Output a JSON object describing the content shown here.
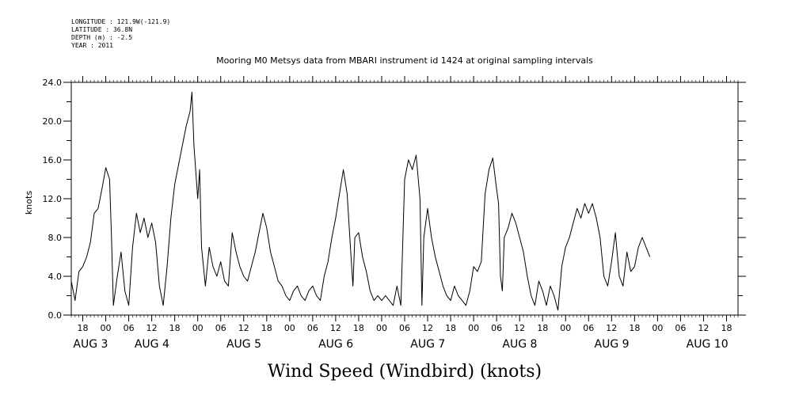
{
  "header": {
    "longitude": "LONGITUDE : 121.9W(-121.9)",
    "latitude": "LATITUDE : 36.8N",
    "depth": "DEPTH (m) : -2.5",
    "year": "YEAR : 2011"
  },
  "chart_data": {
    "type": "line",
    "title": "Mooring M0 Metsys data from MBARI instrument id 1424 at original sampling intervals",
    "ylabel": "knots",
    "xlabel": "Wind Speed (Windbird) (knots)",
    "ylim": [
      0,
      24
    ],
    "yticks": [
      "0.0",
      "4.0",
      "8.0",
      "12.0",
      "16.0",
      "20.0",
      "24.0"
    ],
    "xlim": [
      0,
      174
    ],
    "x_note": "hours since 2011-08-02 15:00",
    "hour_ticks": [
      {
        "x": 3,
        "label": "18"
      },
      {
        "x": 9,
        "label": "00"
      },
      {
        "x": 15,
        "label": "06"
      },
      {
        "x": 21,
        "label": "12"
      },
      {
        "x": 27,
        "label": "18"
      },
      {
        "x": 33,
        "label": "00"
      },
      {
        "x": 39,
        "label": "06"
      },
      {
        "x": 45,
        "label": "12"
      },
      {
        "x": 51,
        "label": "18"
      },
      {
        "x": 57,
        "label": "00"
      },
      {
        "x": 63,
        "label": "06"
      },
      {
        "x": 69,
        "label": "12"
      },
      {
        "x": 75,
        "label": "18"
      },
      {
        "x": 81,
        "label": "00"
      },
      {
        "x": 87,
        "label": "06"
      },
      {
        "x": 93,
        "label": "12"
      },
      {
        "x": 99,
        "label": "18"
      },
      {
        "x": 105,
        "label": "00"
      },
      {
        "x": 111,
        "label": "06"
      },
      {
        "x": 117,
        "label": "12"
      },
      {
        "x": 123,
        "label": "18"
      },
      {
        "x": 129,
        "label": "00"
      },
      {
        "x": 135,
        "label": "06"
      },
      {
        "x": 141,
        "label": "12"
      },
      {
        "x": 147,
        "label": "18"
      },
      {
        "x": 153,
        "label": "00"
      },
      {
        "x": 159,
        "label": "06"
      },
      {
        "x": 165,
        "label": "12"
      },
      {
        "x": 171,
        "label": "18"
      }
    ],
    "day_labels": [
      {
        "x": 0.5,
        "label": "AUG  3"
      },
      {
        "x": 16.5,
        "label": "AUG  4"
      },
      {
        "x": 40.5,
        "label": "AUG  5"
      },
      {
        "x": 64.5,
        "label": "AUG  6"
      },
      {
        "x": 88.5,
        "label": "AUG  7"
      },
      {
        "x": 112.5,
        "label": "AUG  8"
      },
      {
        "x": 136.5,
        "label": "AUG  9"
      },
      {
        "x": 160.5,
        "label": "AUG 10"
      }
    ],
    "series": [
      {
        "values": [
          [
            0,
            3.5
          ],
          [
            1,
            1.5
          ],
          [
            2,
            4.5
          ],
          [
            3,
            5.0
          ],
          [
            4,
            6.0
          ],
          [
            5,
            7.5
          ],
          [
            6,
            10.5
          ],
          [
            7,
            11.0
          ],
          [
            8,
            13.0
          ],
          [
            9,
            15.2
          ],
          [
            10,
            14.0
          ],
          [
            10.5,
            8.0
          ],
          [
            11,
            1.0
          ],
          [
            12,
            4.0
          ],
          [
            13,
            6.5
          ],
          [
            14,
            2.5
          ],
          [
            15,
            1.0
          ],
          [
            16,
            7.0
          ],
          [
            17,
            10.5
          ],
          [
            18,
            8.5
          ],
          [
            19,
            10.0
          ],
          [
            20,
            8.0
          ],
          [
            21,
            9.5
          ],
          [
            22,
            7.5
          ],
          [
            23,
            3.0
          ],
          [
            24,
            1.0
          ],
          [
            25,
            5.0
          ],
          [
            26,
            10.0
          ],
          [
            27,
            13.5
          ],
          [
            28,
            15.5
          ],
          [
            29,
            17.5
          ],
          [
            30,
            19.5
          ],
          [
            31,
            21.0
          ],
          [
            31.5,
            23.0
          ],
          [
            32,
            17.5
          ],
          [
            33,
            12.0
          ],
          [
            33.5,
            15.0
          ],
          [
            34,
            7.0
          ],
          [
            35,
            3.0
          ],
          [
            36,
            7.0
          ],
          [
            37,
            5.0
          ],
          [
            38,
            4.0
          ],
          [
            39,
            5.5
          ],
          [
            40,
            3.5
          ],
          [
            41,
            3.0
          ],
          [
            42,
            8.5
          ],
          [
            43,
            6.5
          ],
          [
            44,
            5.0
          ],
          [
            45,
            4.0
          ],
          [
            46,
            3.5
          ],
          [
            47,
            5.0
          ],
          [
            48,
            6.5
          ],
          [
            49,
            8.5
          ],
          [
            50,
            10.5
          ],
          [
            51,
            9.0
          ],
          [
            52,
            6.5
          ],
          [
            53,
            5.0
          ],
          [
            54,
            3.5
          ],
          [
            55,
            3.0
          ],
          [
            56,
            2.0
          ],
          [
            57,
            1.5
          ],
          [
            58,
            2.5
          ],
          [
            59,
            3.0
          ],
          [
            60,
            2.0
          ],
          [
            61,
            1.5
          ],
          [
            62,
            2.5
          ],
          [
            63,
            3.0
          ],
          [
            64,
            2.0
          ],
          [
            65,
            1.5
          ],
          [
            66,
            4.0
          ],
          [
            67,
            5.5
          ],
          [
            68,
            8.0
          ],
          [
            69,
            10.0
          ],
          [
            70,
            12.5
          ],
          [
            71,
            15.0
          ],
          [
            72,
            12.5
          ],
          [
            73,
            6.0
          ],
          [
            73.5,
            3.0
          ],
          [
            74,
            8.0
          ],
          [
            75,
            8.5
          ],
          [
            76,
            6.0
          ],
          [
            77,
            4.5
          ],
          [
            78,
            2.5
          ],
          [
            79,
            1.5
          ],
          [
            80,
            2.0
          ],
          [
            81,
            1.5
          ],
          [
            82,
            2.0
          ],
          [
            83,
            1.5
          ],
          [
            84,
            1.0
          ],
          [
            85,
            3.0
          ],
          [
            86,
            1.0
          ],
          [
            87,
            14.0
          ],
          [
            88,
            16.0
          ],
          [
            89,
            15.0
          ],
          [
            90,
            16.5
          ],
          [
            91,
            12.0
          ],
          [
            91.5,
            1.0
          ],
          [
            92,
            8.0
          ],
          [
            93,
            11.0
          ],
          [
            94,
            8.0
          ],
          [
            95,
            6.0
          ],
          [
            96,
            4.5
          ],
          [
            97,
            3.0
          ],
          [
            98,
            2.0
          ],
          [
            99,
            1.5
          ],
          [
            100,
            3.0
          ],
          [
            101,
            2.0
          ],
          [
            102,
            1.5
          ],
          [
            103,
            1.0
          ],
          [
            104,
            2.5
          ],
          [
            105,
            5.0
          ],
          [
            106,
            4.5
          ],
          [
            107,
            5.5
          ],
          [
            108,
            12.5
          ],
          [
            109,
            15.0
          ],
          [
            110,
            16.2
          ],
          [
            111,
            13.0
          ],
          [
            111.5,
            11.5
          ],
          [
            112,
            4.0
          ],
          [
            112.5,
            2.5
          ],
          [
            113,
            8.0
          ],
          [
            114,
            9.0
          ],
          [
            115,
            10.5
          ],
          [
            116,
            9.5
          ],
          [
            117,
            8.0
          ],
          [
            118,
            6.5
          ],
          [
            119,
            4.0
          ],
          [
            120,
            2.0
          ],
          [
            121,
            1.0
          ],
          [
            122,
            3.5
          ],
          [
            123,
            2.5
          ],
          [
            124,
            1.0
          ],
          [
            125,
            3.0
          ],
          [
            126,
            2.0
          ],
          [
            127,
            0.5
          ],
          [
            128,
            5.0
          ],
          [
            129,
            7.0
          ],
          [
            130,
            8.0
          ],
          [
            131,
            9.5
          ],
          [
            132,
            11.0
          ],
          [
            133,
            10.0
          ],
          [
            134,
            11.5
          ],
          [
            135,
            10.5
          ],
          [
            136,
            11.5
          ],
          [
            137,
            10.0
          ],
          [
            138,
            8.0
          ],
          [
            139,
            4.0
          ],
          [
            140,
            3.0
          ],
          [
            141,
            5.5
          ],
          [
            142,
            8.5
          ],
          [
            143,
            4.0
          ],
          [
            144,
            3.0
          ],
          [
            145,
            6.5
          ],
          [
            146,
            4.5
          ],
          [
            147,
            5.0
          ],
          [
            148,
            7.0
          ],
          [
            149,
            8.0
          ],
          [
            150,
            7.0
          ],
          [
            151,
            6.0
          ]
        ]
      }
    ]
  }
}
